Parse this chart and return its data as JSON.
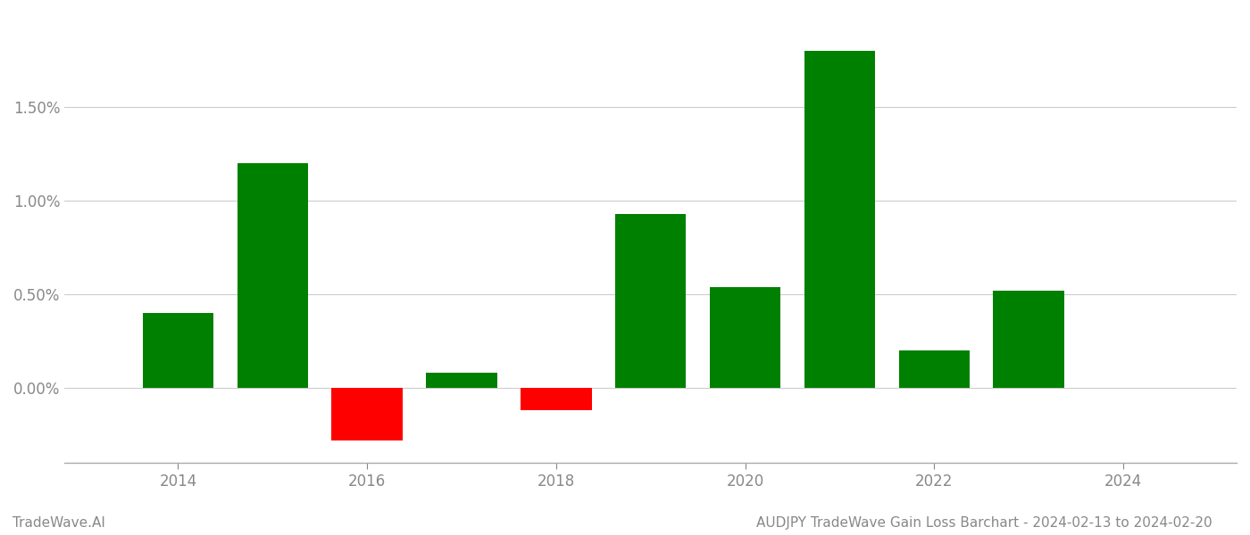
{
  "years": [
    2014,
    2015,
    2016,
    2017,
    2018,
    2019,
    2020,
    2021,
    2022,
    2023
  ],
  "values": [
    0.004,
    0.012,
    -0.0028,
    0.0008,
    -0.0012,
    0.0093,
    0.0054,
    0.018,
    0.002,
    0.0052
  ],
  "colors": [
    "#008000",
    "#008000",
    "#ff0000",
    "#008000",
    "#ff0000",
    "#008000",
    "#008000",
    "#008000",
    "#008000",
    "#008000"
  ],
  "title": "AUDJPY TradeWave Gain Loss Barchart - 2024-02-13 to 2024-02-20",
  "watermark": "TradeWave.AI",
  "ylim_min": -0.004,
  "ylim_max": 0.02,
  "yticks": [
    0.0,
    0.005,
    0.01,
    0.015
  ],
  "bar_width": 0.75,
  "grid_color": "#cccccc",
  "background_color": "#ffffff",
  "title_fontsize": 11,
  "watermark_fontsize": 11,
  "tick_label_fontsize": 12,
  "xlabel_ticks": [
    2014,
    2016,
    2018,
    2020,
    2022,
    2024
  ],
  "xlim_min": 2012.8,
  "xlim_max": 2025.2,
  "axis_color": "#888888",
  "spine_color": "#aaaaaa"
}
